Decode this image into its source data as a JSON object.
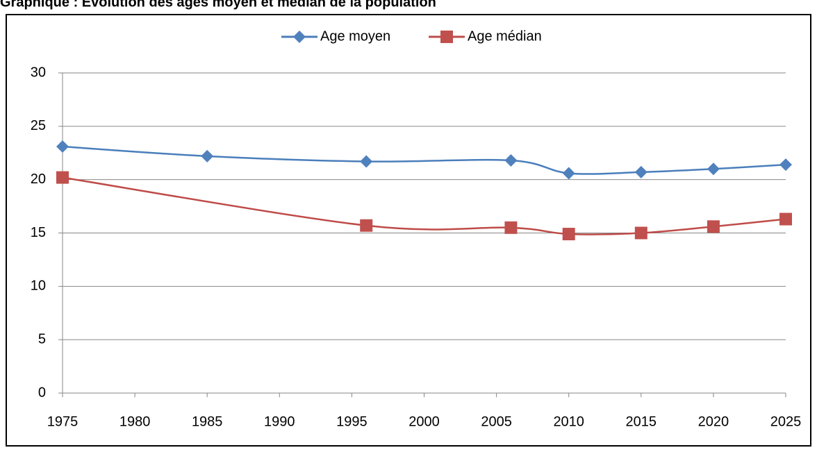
{
  "chart_data": {
    "type": "line",
    "title": "Graphique : Evolution des âges moyen et médian de la population",
    "x": [
      1975,
      1985,
      1996,
      2006,
      2010,
      2015,
      2020,
      2025
    ],
    "series": [
      {
        "name": "Age moyen",
        "color": "#4a7ebb",
        "marker_color": "#4f81bd",
        "marker": "diamond",
        "values": [
          23.1,
          22.2,
          21.7,
          21.8,
          20.6,
          20.7,
          21.0,
          21.4
        ]
      },
      {
        "name": "Age médian",
        "color": "#be4b48",
        "marker_color": "#c0504d",
        "marker": "square",
        "values": [
          20.2,
          null,
          15.7,
          15.5,
          14.9,
          15.0,
          15.6,
          16.3
        ]
      }
    ],
    "xlim": [
      1975,
      2025
    ],
    "xticks": [
      1975,
      1980,
      1985,
      1990,
      1995,
      2000,
      2005,
      2010,
      2015,
      2020,
      2025
    ],
    "ylim": [
      0,
      30
    ],
    "yticks": [
      0,
      5,
      10,
      15,
      20,
      25,
      30
    ],
    "grid": true,
    "smooth": true,
    "legend": "top"
  }
}
